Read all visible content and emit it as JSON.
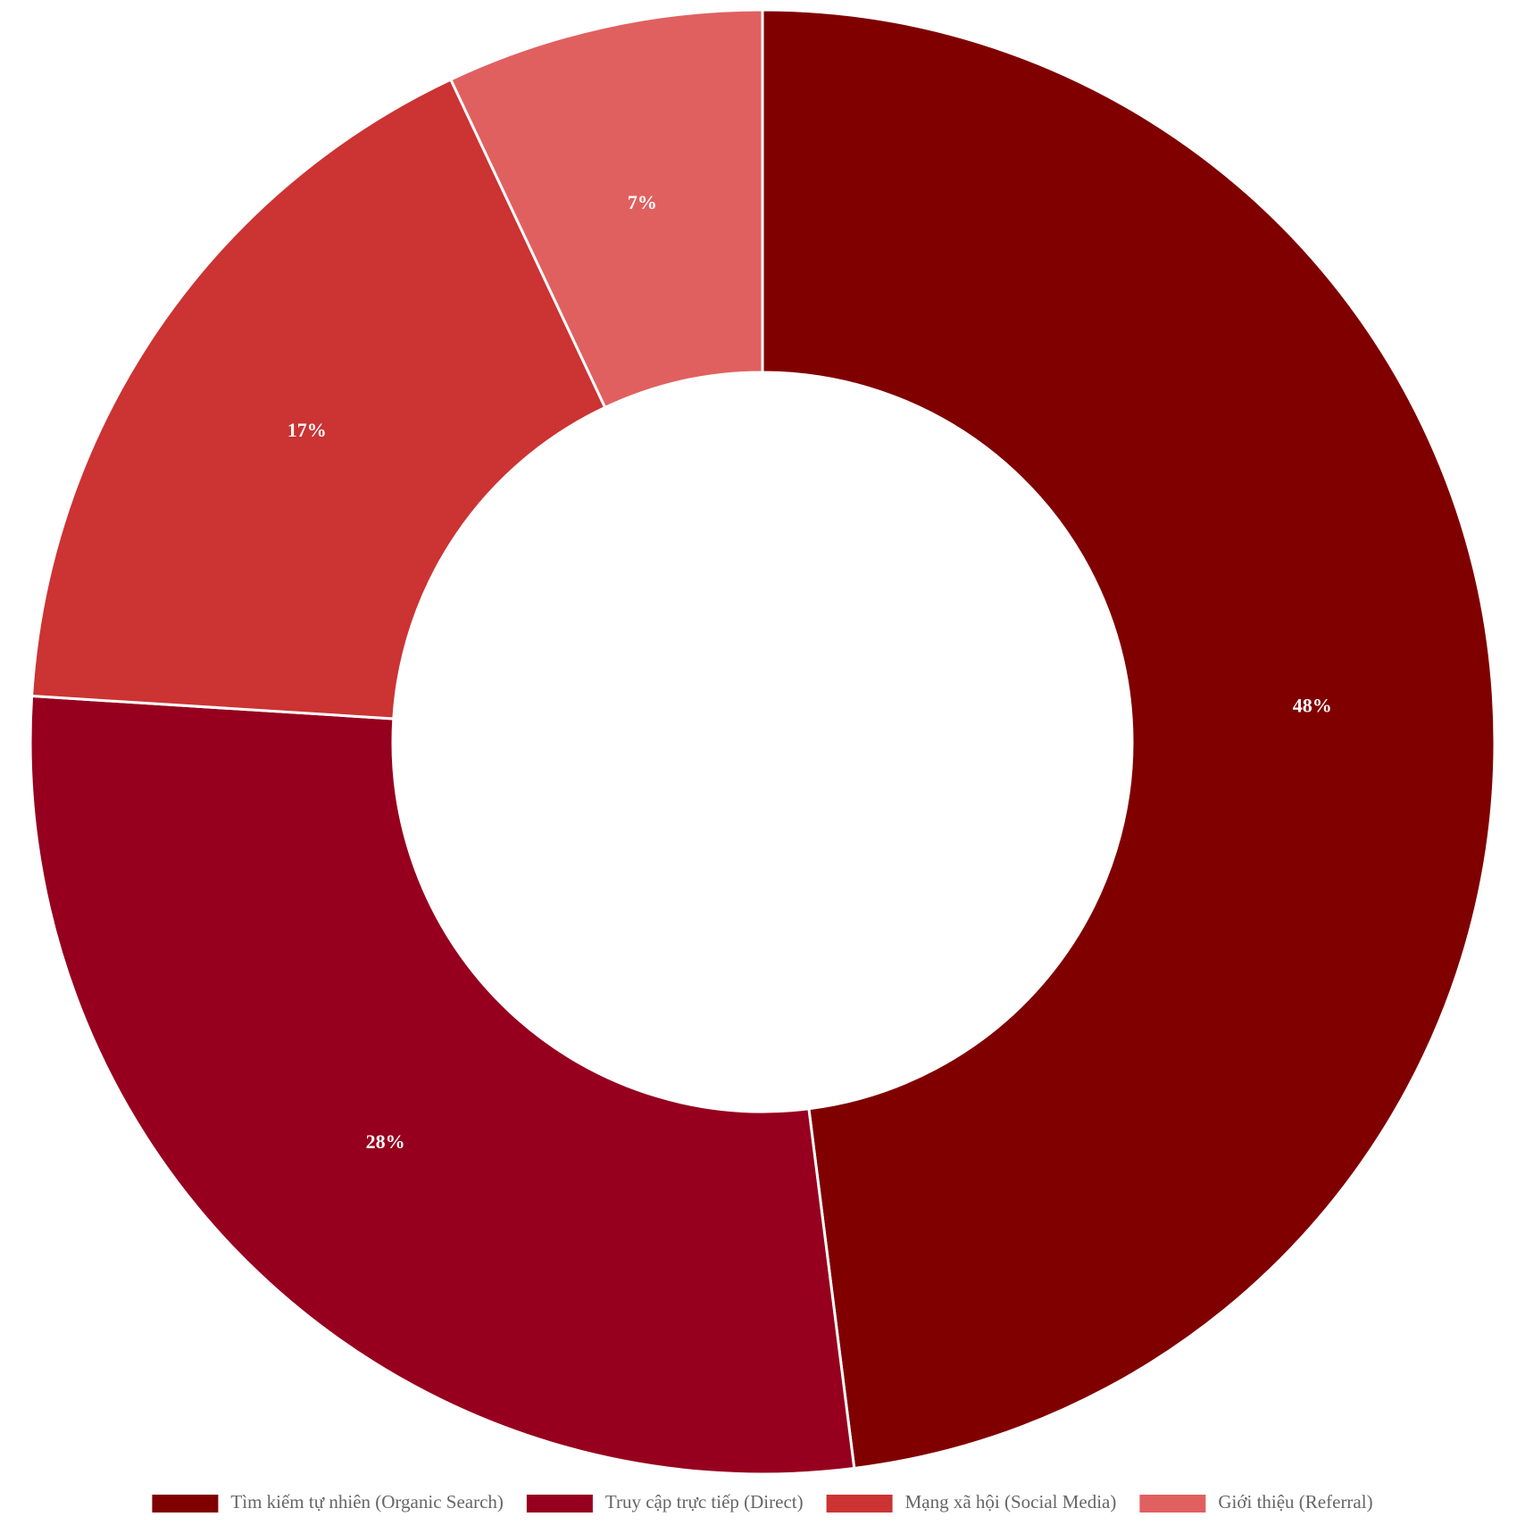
{
  "chart_data": {
    "type": "pie",
    "variant": "doughnut",
    "title": "",
    "categories": [
      "Tìm kiếm tự nhiên (Organic Search)",
      "Truy cập trực tiếp (Direct)",
      "Mạng xã hội (Social Media)",
      "Giới thiệu (Referral)"
    ],
    "values": [
      48,
      28,
      17,
      7
    ],
    "value_labels": [
      "48%",
      "28%",
      "17%",
      "7%"
    ],
    "colors": [
      "#800000",
      "#96001e",
      "#cc3333",
      "#e06060"
    ],
    "legend_position": "bottom",
    "start_angle": "top (12 o'clock)",
    "direction": "clockwise"
  }
}
